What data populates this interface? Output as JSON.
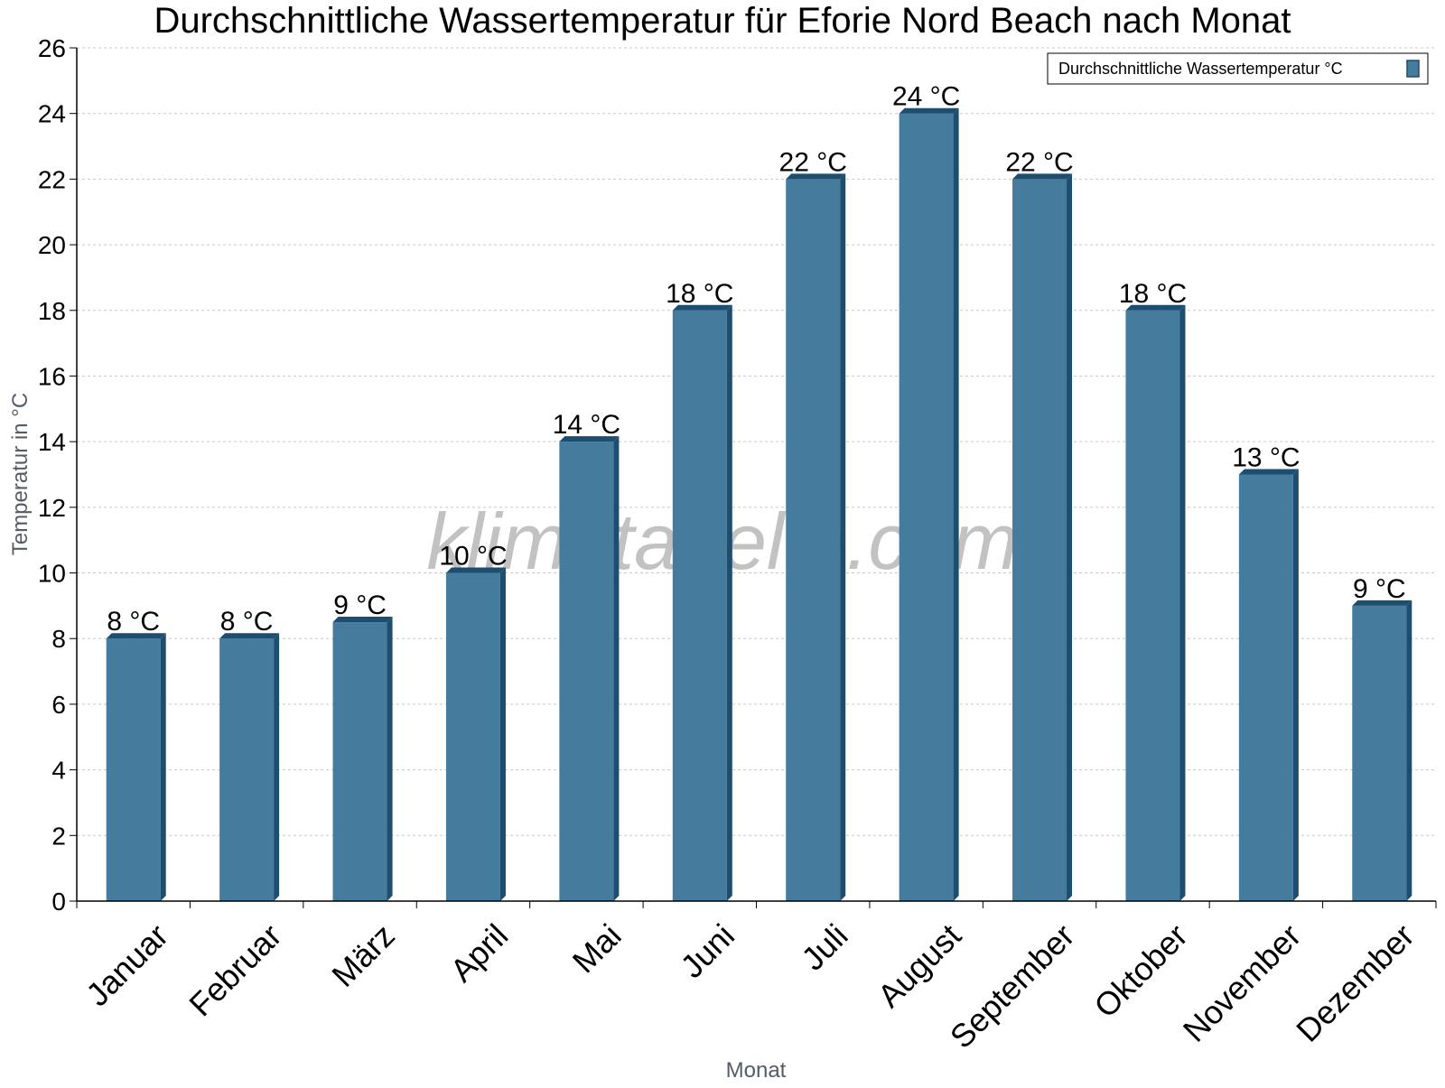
{
  "chart_data": {
    "type": "bar",
    "title": "Durchschnittliche Wassertemperatur für Eforie Nord Beach nach Monat",
    "xlabel": "Monat",
    "ylabel": "Temperatur in °C",
    "categories": [
      "Januar",
      "Februar",
      "März",
      "April",
      "Mai",
      "Juni",
      "Juli",
      "August",
      "September",
      "Oktober",
      "November",
      "Dezember"
    ],
    "series": [
      {
        "name": "Durchschnittliche Wassertemperatur °C",
        "values": [
          8,
          8,
          8.5,
          10,
          14,
          18,
          22,
          24,
          22,
          18,
          13,
          9
        ],
        "data_labels": [
          "8 °C",
          "8 °C",
          "9 °C",
          "10 °C",
          "14 °C",
          "18 °C",
          "22 °C",
          "24 °C",
          "22 °C",
          "18 °C",
          "13 °C",
          "9 °C"
        ],
        "color": "#457b9d",
        "edge_color": "#1d4e6f"
      }
    ],
    "ylim": [
      0,
      26
    ],
    "yticks": [
      "0",
      "2",
      "4",
      "6",
      "8",
      "10",
      "12",
      "14",
      "16",
      "18",
      "20",
      "22",
      "24",
      "26"
    ],
    "grid": true,
    "legend_position": "top-right",
    "watermark": "klimatabelle.com"
  }
}
